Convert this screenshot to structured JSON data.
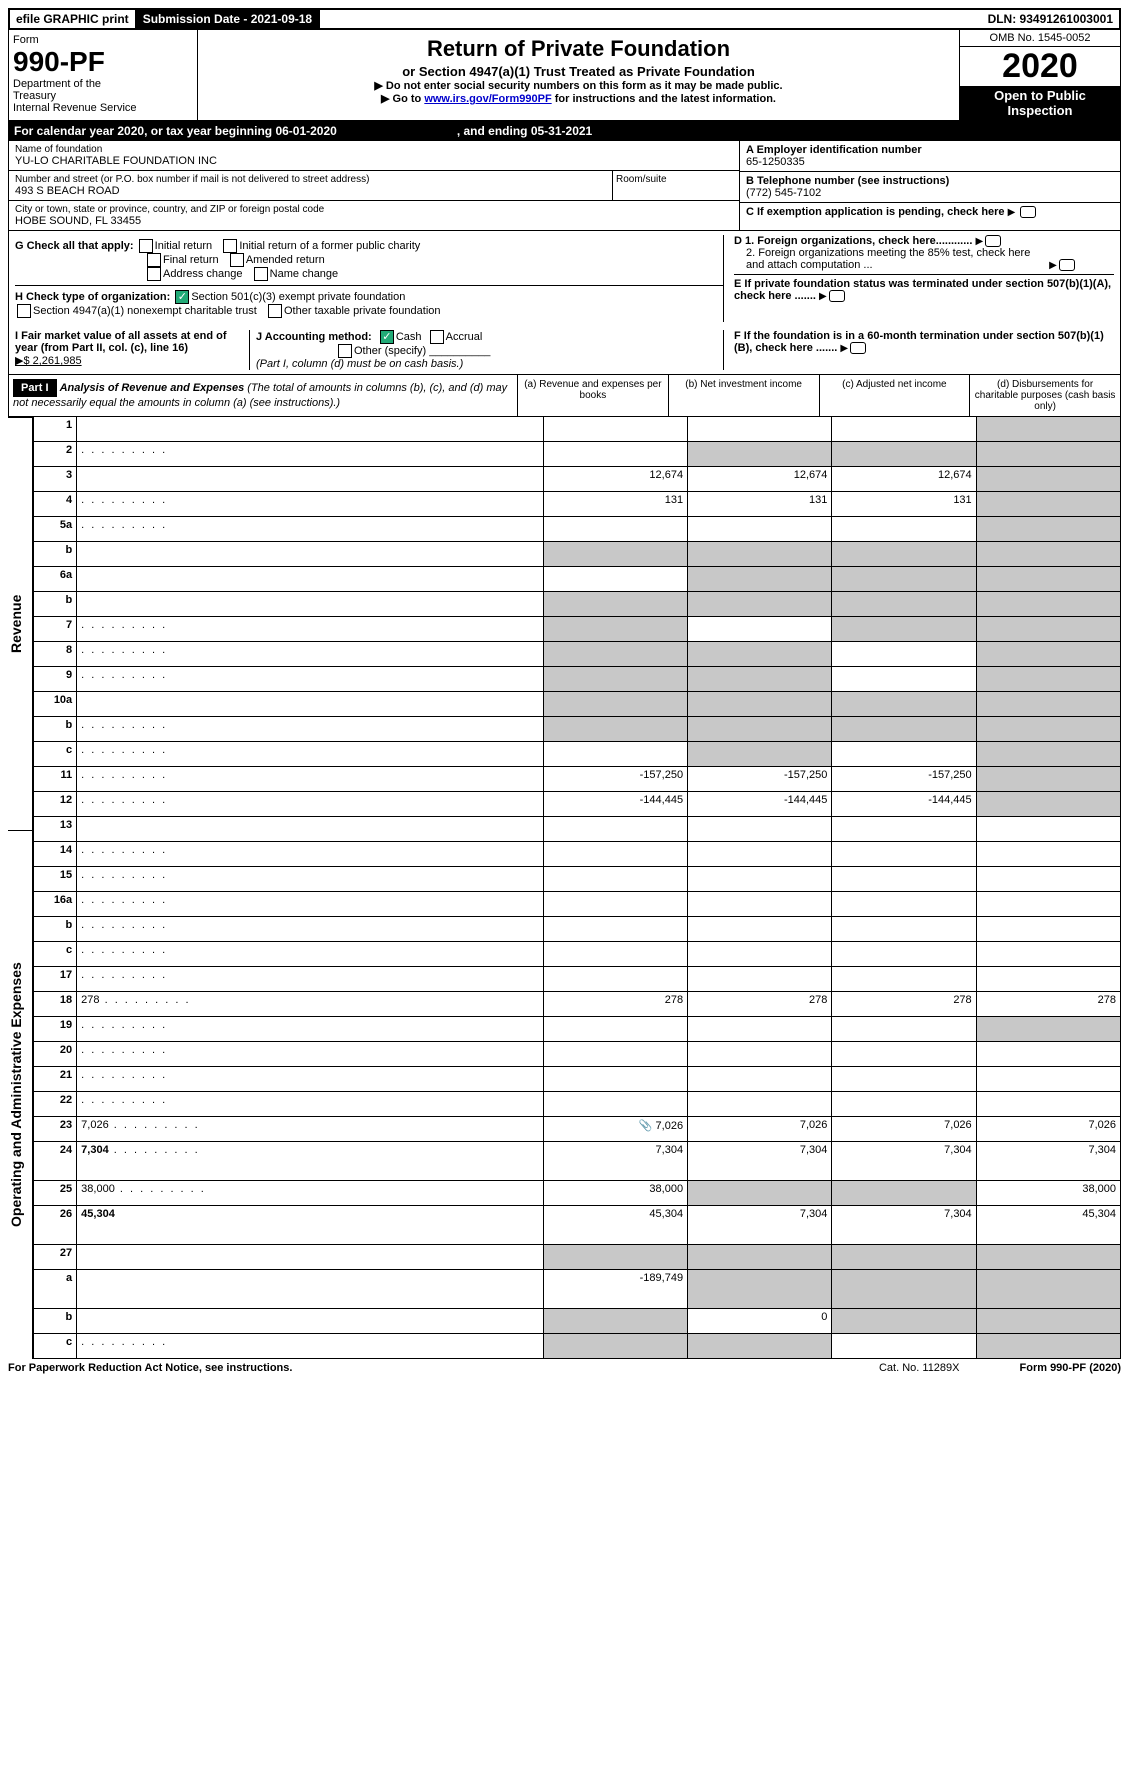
{
  "topbar": {
    "efile": "efile GRAPHIC print",
    "submission_label": "Submission Date - 2021-09-18",
    "dln": "DLN: 93491261003001"
  },
  "header": {
    "form_word": "Form",
    "form_no": "990-PF",
    "dept1": "Department of the",
    "dept2": "Treasury",
    "dept3": "Internal Revenue Service",
    "title": "Return of Private Foundation",
    "subtitle": "or Section 4947(a)(1) Trust Treated as Private Foundation",
    "note1": "▶ Do not enter social security numbers on this form as it may be made public.",
    "note2_pre": "▶ Go to ",
    "note2_link": "www.irs.gov/Form990PF",
    "note2_post": " for instructions and the latest information.",
    "omb": "OMB No. 1545-0052",
    "year": "2020",
    "otp1": "Open to Public",
    "otp2": "Inspection"
  },
  "calyear": {
    "pre": "For calendar year 2020, or tax year beginning 06-01-2020",
    "mid": ", and ending 05-31-2021"
  },
  "info": {
    "name_label": "Name of foundation",
    "name": "YU-LO CHARITABLE FOUNDATION INC",
    "addr_label": "Number and street (or P.O. box number if mail is not delivered to street address)",
    "addr": "493 S BEACH ROAD",
    "room_label": "Room/suite",
    "city_label": "City or town, state or province, country, and ZIP or foreign postal code",
    "city": "HOBE SOUND, FL  33455",
    "a_label": "A Employer identification number",
    "a_val": "65-1250335",
    "b_label": "B Telephone number (see instructions)",
    "b_val": "(772) 545-7102",
    "c_label": "C If exemption application is pending, check here",
    "d1": "D 1. Foreign organizations, check here............",
    "d2": "2. Foreign organizations meeting the 85% test, check here and attach computation ...",
    "e": "E  If private foundation status was terminated under section 507(b)(1)(A), check here .......",
    "f": "F  If the foundation is in a 60-month termination under section 507(b)(1)(B), check here ......."
  },
  "g": {
    "label": "G Check all that apply:",
    "o1": "Initial return",
    "o2": "Initial return of a former public charity",
    "o3": "Final return",
    "o4": "Amended return",
    "o5": "Address change",
    "o6": "Name change"
  },
  "h": {
    "label": "H Check type of organization:",
    "o1": "Section 501(c)(3) exempt private foundation",
    "o2": "Section 4947(a)(1) nonexempt charitable trust",
    "o3": "Other taxable private foundation"
  },
  "i": {
    "label": "I Fair market value of all assets at end of year (from Part II, col. (c), line 16)",
    "val": "▶$  2,261,985"
  },
  "j": {
    "label": "J Accounting method:",
    "cash": "Cash",
    "accrual": "Accrual",
    "other": "Other (specify)",
    "note": "(Part I, column (d) must be on cash basis.)"
  },
  "part1": {
    "tag": "Part I",
    "title": "Analysis of Revenue and Expenses",
    "note": "(The total of amounts in columns (b), (c), and (d) may not necessarily equal the amounts in column (a) (see instructions).)",
    "col_a": "(a)   Revenue and expenses per books",
    "col_b": "(b)  Net investment income",
    "col_c": "(c)  Adjusted net income",
    "col_d": "(d)  Disbursements for charitable purposes (cash basis only)"
  },
  "vlabels": {
    "rev": "Revenue",
    "exp": "Operating and Administrative Expenses"
  },
  "rows": [
    {
      "n": "1",
      "d": "",
      "a": "",
      "b": "",
      "c": "",
      "sd": true
    },
    {
      "n": "2",
      "d": "",
      "dots": true,
      "a": "",
      "b": "",
      "c": "",
      "sd": true,
      "sb": true,
      "sc": true,
      "bold_not": true
    },
    {
      "n": "3",
      "d": "",
      "a": "12,674",
      "b": "12,674",
      "c": "12,674",
      "sd": true
    },
    {
      "n": "4",
      "d": "",
      "dots": true,
      "a": "131",
      "b": "131",
      "c": "131",
      "sd": true
    },
    {
      "n": "5a",
      "d": "",
      "dots": true,
      "a": "",
      "b": "",
      "c": "",
      "sd": true
    },
    {
      "n": "b",
      "d": "",
      "a": "",
      "b": "",
      "c": "",
      "sa": true,
      "sb": true,
      "sc": true,
      "sd": true
    },
    {
      "n": "6a",
      "d": "",
      "a": "",
      "b": "",
      "c": "",
      "sb": true,
      "sc": true,
      "sd": true
    },
    {
      "n": "b",
      "d": "",
      "a": "",
      "b": "",
      "c": "",
      "sa": true,
      "sb": true,
      "sc": true,
      "sd": true
    },
    {
      "n": "7",
      "d": "",
      "dots": true,
      "a": "",
      "b": "",
      "c": "",
      "sa": true,
      "sc": true,
      "sd": true
    },
    {
      "n": "8",
      "d": "",
      "dots": true,
      "a": "",
      "b": "",
      "c": "",
      "sa": true,
      "sb": true,
      "sd": true
    },
    {
      "n": "9",
      "d": "",
      "dots": true,
      "a": "",
      "b": "",
      "c": "",
      "sa": true,
      "sb": true,
      "sd": true
    },
    {
      "n": "10a",
      "d": "",
      "a": "",
      "b": "",
      "c": "",
      "sa": true,
      "sb": true,
      "sc": true,
      "sd": true
    },
    {
      "n": "b",
      "d": "",
      "dots": true,
      "a": "",
      "b": "",
      "c": "",
      "sa": true,
      "sb": true,
      "sc": true,
      "sd": true
    },
    {
      "n": "c",
      "d": "",
      "dots": true,
      "a": "",
      "b": "",
      "c": "",
      "sb": true,
      "sd": true
    },
    {
      "n": "11",
      "d": "",
      "dots": true,
      "a": "-157,250",
      "b": "-157,250",
      "c": "-157,250",
      "sd": true
    },
    {
      "n": "12",
      "d": "",
      "dots": true,
      "bold": true,
      "a": "-144,445",
      "b": "-144,445",
      "c": "-144,445",
      "sd": true
    },
    {
      "n": "13",
      "d": "",
      "a": "",
      "b": "",
      "c": ""
    },
    {
      "n": "14",
      "d": "",
      "dots": true,
      "a": "",
      "b": "",
      "c": ""
    },
    {
      "n": "15",
      "d": "",
      "dots": true,
      "a": "",
      "b": "",
      "c": ""
    },
    {
      "n": "16a",
      "d": "",
      "dots": true,
      "a": "",
      "b": "",
      "c": ""
    },
    {
      "n": "b",
      "d": "",
      "dots": true,
      "a": "",
      "b": "",
      "c": ""
    },
    {
      "n": "c",
      "d": "",
      "dots": true,
      "a": "",
      "b": "",
      "c": ""
    },
    {
      "n": "17",
      "d": "",
      "dots": true,
      "a": "",
      "b": "",
      "c": ""
    },
    {
      "n": "18",
      "d": "278",
      "dots": true,
      "a": "278",
      "b": "278",
      "c": "278"
    },
    {
      "n": "19",
      "d": "",
      "dots": true,
      "a": "",
      "b": "",
      "c": "",
      "sd": true
    },
    {
      "n": "20",
      "d": "",
      "dots": true,
      "a": "",
      "b": "",
      "c": ""
    },
    {
      "n": "21",
      "d": "",
      "dots": true,
      "a": "",
      "b": "",
      "c": ""
    },
    {
      "n": "22",
      "d": "",
      "dots": true,
      "a": "",
      "b": "",
      "c": ""
    },
    {
      "n": "23",
      "d": "7,026",
      "dots": true,
      "a": "7,026",
      "b": "7,026",
      "c": "7,026",
      "clip": true
    },
    {
      "n": "24",
      "d": "7,304",
      "dots": true,
      "bold": true,
      "a": "7,304",
      "b": "7,304",
      "c": "7,304",
      "tall": true
    },
    {
      "n": "25",
      "d": "38,000",
      "dots": true,
      "a": "38,000",
      "b": "",
      "c": "",
      "sb": true,
      "sc": true
    },
    {
      "n": "26",
      "d": "45,304",
      "bold": true,
      "a": "45,304",
      "b": "7,304",
      "c": "7,304",
      "tall": true
    },
    {
      "n": "27",
      "d": "",
      "a": "",
      "b": "",
      "c": "",
      "sa": true,
      "sb": true,
      "sc": true,
      "sd": true
    },
    {
      "n": "a",
      "d": "",
      "bold": true,
      "a": "-189,749",
      "b": "",
      "c": "",
      "sb": true,
      "sc": true,
      "sd": true,
      "tall": true
    },
    {
      "n": "b",
      "d": "",
      "bold": true,
      "a": "",
      "b": "0",
      "c": "",
      "sa": true,
      "sc": true,
      "sd": true
    },
    {
      "n": "c",
      "d": "",
      "dots": true,
      "bold": true,
      "a": "",
      "b": "",
      "c": "",
      "sa": true,
      "sb": true,
      "sd": true
    }
  ],
  "footer": {
    "left": "For Paperwork Reduction Act Notice, see instructions.",
    "mid": "Cat. No. 11289X",
    "right": "Form 990-PF (2020)"
  }
}
